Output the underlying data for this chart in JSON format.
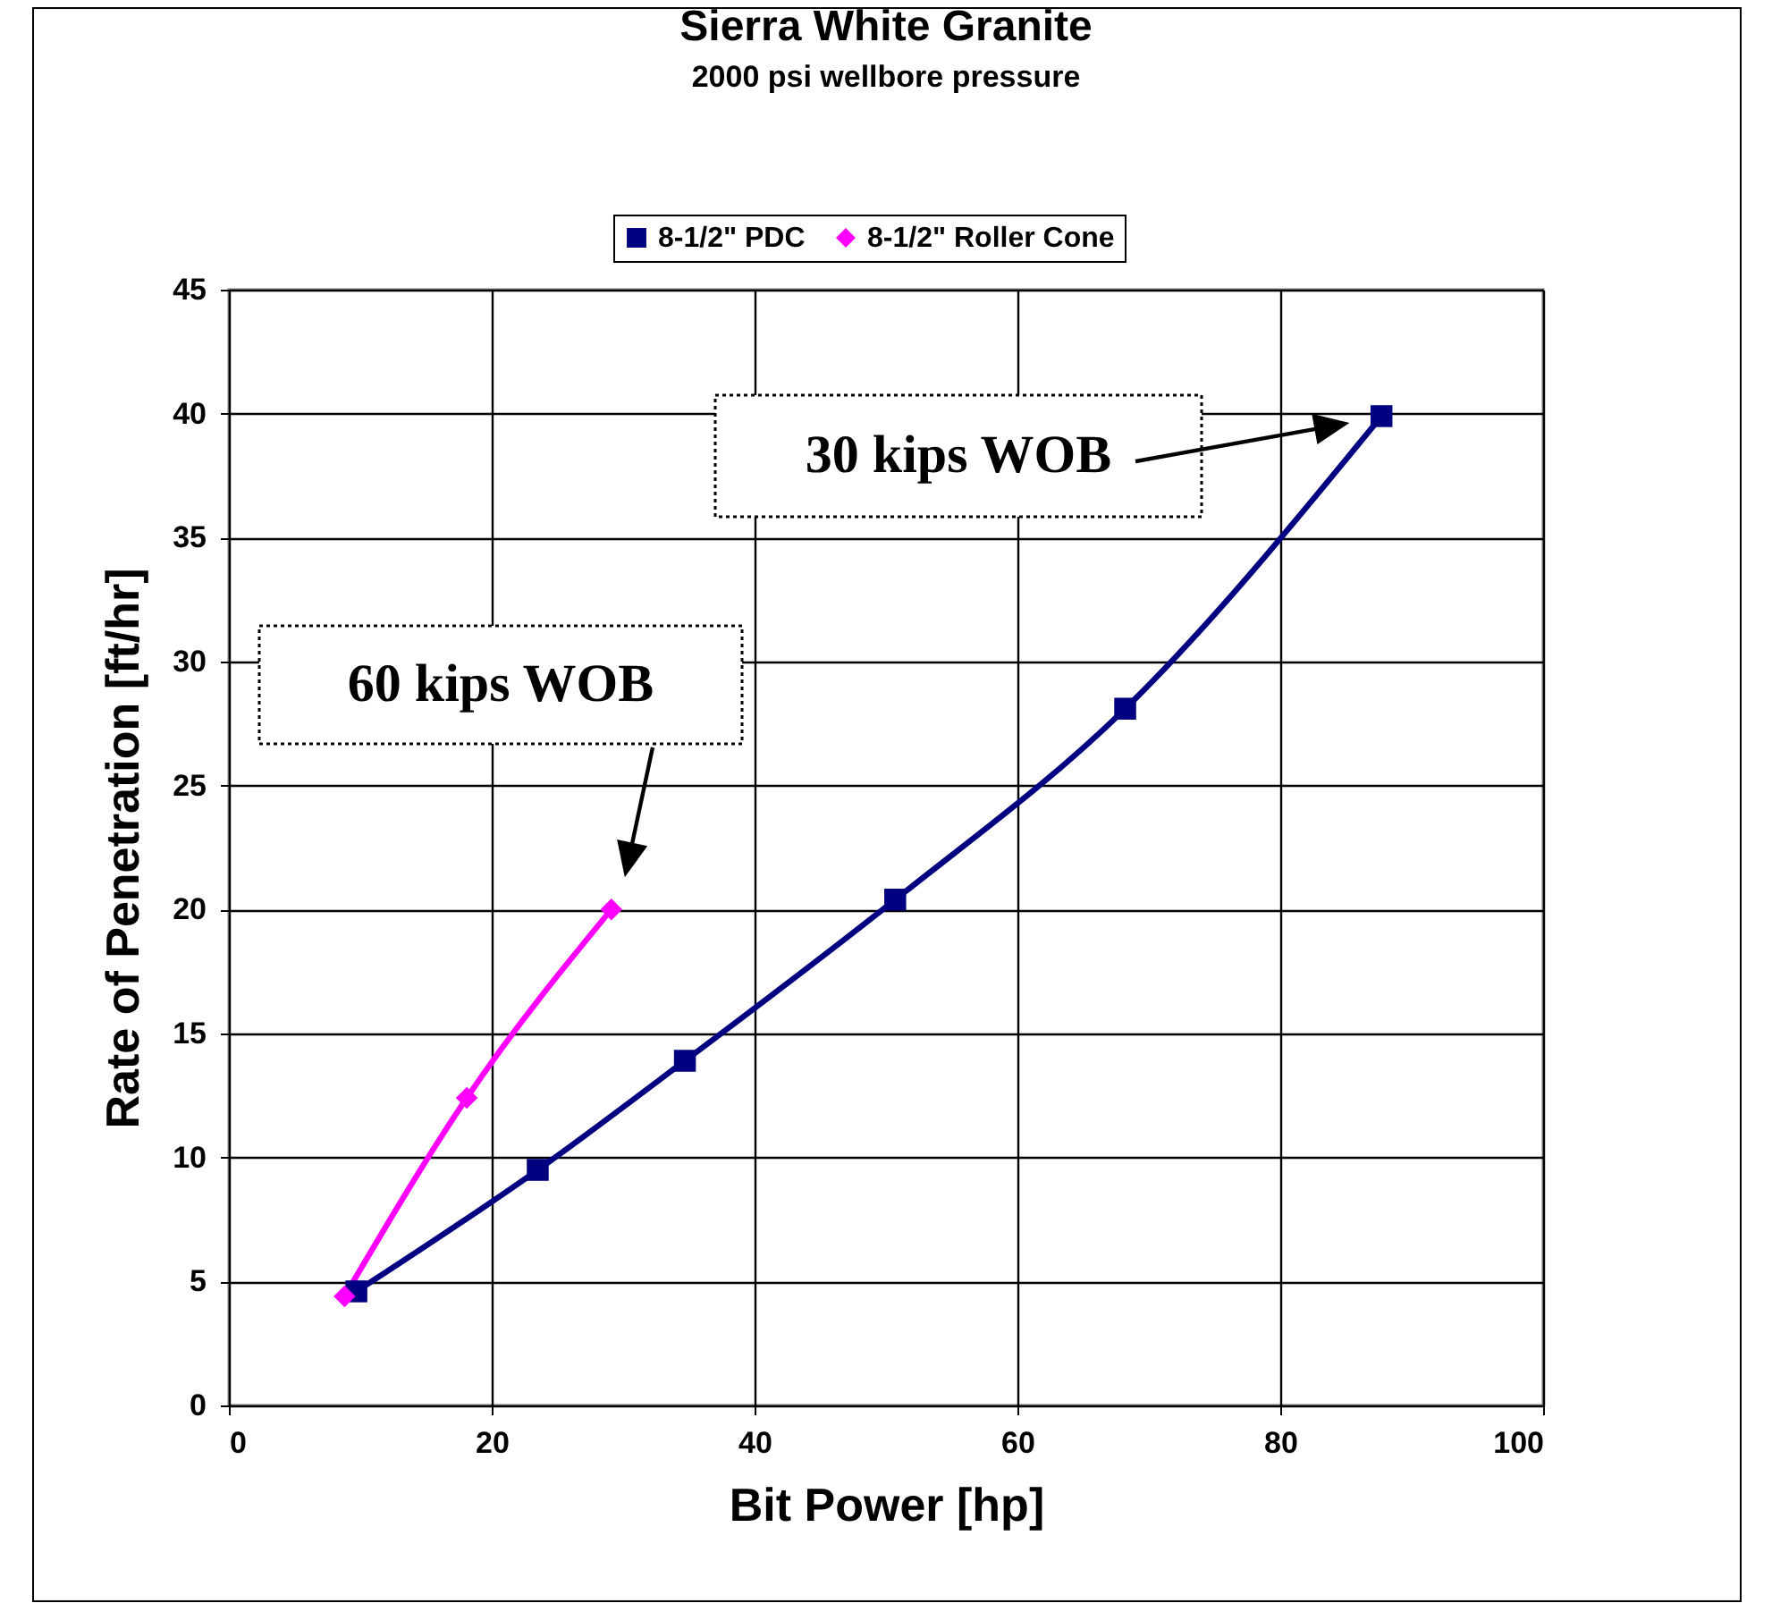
{
  "chart_data": {
    "type": "line",
    "title": "Sierra White Granite",
    "subtitle": "2000 psi wellbore pressure",
    "xlabel": "Bit Power [hp]",
    "ylabel": "Rate of Penetration [ft/hr]",
    "xlim": [
      0,
      100
    ],
    "xticks": [
      0,
      20,
      40,
      60,
      80,
      100
    ],
    "ylim": [
      0,
      45
    ],
    "yticks": [
      0,
      5,
      10,
      15,
      20,
      25,
      30,
      35,
      40,
      45
    ],
    "grid": true,
    "legend": "top",
    "line_style": "solid",
    "series": [
      {
        "name": "8-1/2\" PDC",
        "color": "#000080",
        "marker": "square",
        "x": [
          9.7,
          23.5,
          34.7,
          50.7,
          68.2,
          87.7
        ],
        "values": [
          4.6,
          9.5,
          13.9,
          20.4,
          28.1,
          39.9
        ]
      },
      {
        "name": "8-1/2\" Roller Cone",
        "color": "#ff00ff",
        "marker": "diamond",
        "x": [
          8.8,
          18.1,
          29.1
        ],
        "values": [
          4.4,
          12.4,
          20.0
        ]
      }
    ],
    "annotations": [
      "60 kips WOB",
      "30 kips WOB"
    ]
  }
}
